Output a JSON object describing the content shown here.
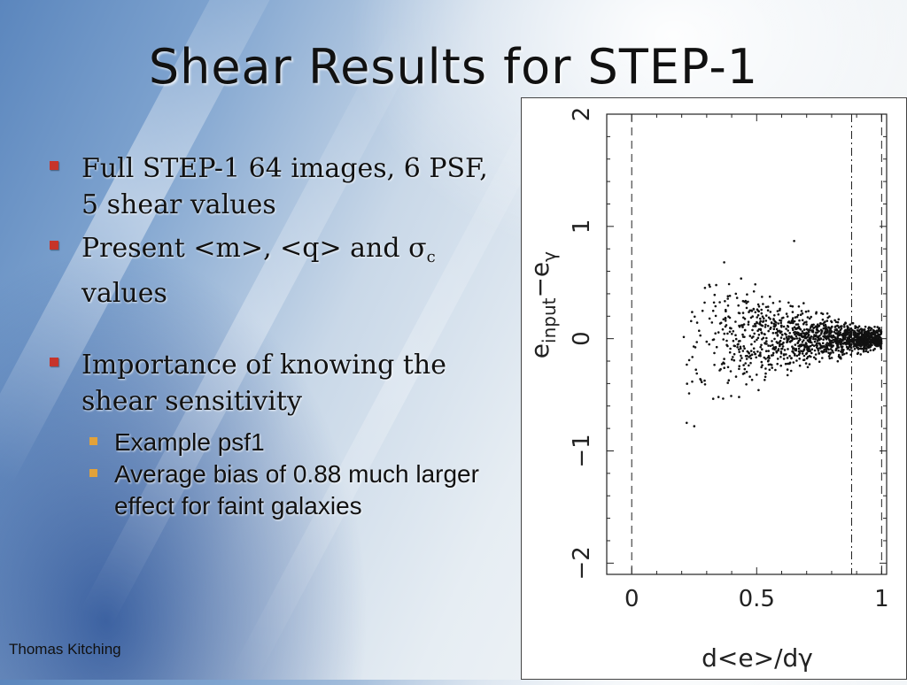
{
  "slide": {
    "title": "Shear Results for STEP-1",
    "bullets": [
      {
        "text": "Full STEP-1 64 images, 6 PSF, 5 shear values"
      },
      {
        "pre": "Present <m>, <q> and ",
        "symbol": "σ",
        "subscript": "c",
        "post": " values"
      },
      {
        "text": "Importance of knowing the shear sensitivity",
        "sub_bullets": [
          "Example psf1",
          "Average bias of 0.88 much larger effect for faint galaxies"
        ]
      }
    ],
    "footer": "Thomas Kitching",
    "colors": {
      "bullet_level1": "#c6342a",
      "bullet_level2": "#e2a23a"
    }
  },
  "chart_data": {
    "type": "scatter",
    "xlabel": "d<e>/dγ",
    "ylabel": "e_input − ê_γ",
    "ylabel_parts": {
      "main": "e",
      "sub": "input",
      "op": "−",
      "hat": "e",
      "hat_sub": "γ"
    },
    "xlim": [
      -0.1,
      1.02
    ],
    "ylim": [
      -2.1,
      2.0
    ],
    "x_ticks": [
      0,
      0.5,
      1
    ],
    "x_tick_labels": [
      "0",
      "0.5",
      "1"
    ],
    "y_ticks": [
      -2,
      -1,
      0,
      1,
      2
    ],
    "y_tick_labels": [
      "−2",
      "−1",
      "0",
      "1",
      "2"
    ],
    "reference_lines": [
      {
        "x": 0,
        "style": "dashed"
      },
      {
        "x": 0.88,
        "style": "dash-dot"
      },
      {
        "x": 1,
        "style": "dashed"
      }
    ],
    "points_description_values": {
      "x_range": [
        0.17,
        1.0
      ],
      "y_center": 0,
      "notable_points": [
        [
          0.65,
          0.87
        ],
        [
          0.37,
          0.68
        ],
        [
          0.22,
          -0.75
        ],
        [
          0.25,
          -0.78
        ],
        [
          0.31,
          0.48
        ]
      ]
    }
  }
}
